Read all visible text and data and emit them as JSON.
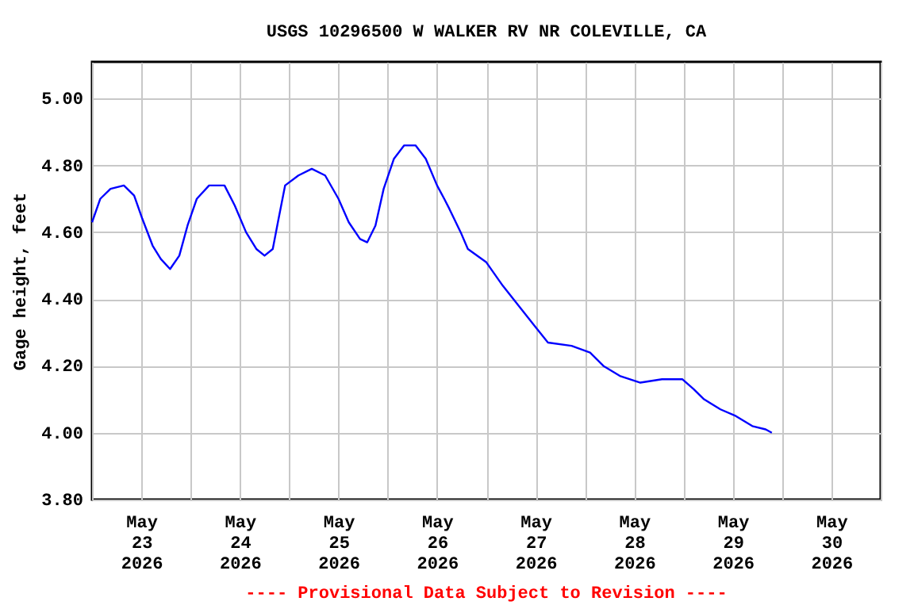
{
  "chart_data": {
    "type": "line",
    "title": "USGS 10296500 W WALKER RV NR COLEVILLE, CA",
    "ylabel": "Gage height, feet",
    "annotations": [
      "---- Provisional Data Subject to Revision ----"
    ],
    "x": [
      "2026-05-23T00:00",
      "2026-05-23T02:00",
      "2026-05-23T04:30",
      "2026-05-23T07:45",
      "2026-05-23T10:15",
      "2026-05-23T12:15",
      "2026-05-23T14:45",
      "2026-05-23T16:45",
      "2026-05-23T19:00",
      "2026-05-23T21:15",
      "2026-05-23T23:15",
      "2026-05-24T01:30",
      "2026-05-24T04:30",
      "2026-05-24T08:15",
      "2026-05-24T10:45",
      "2026-05-24T13:30",
      "2026-05-24T16:00",
      "2026-05-24T18:00",
      "2026-05-24T20:00",
      "2026-05-24T21:15",
      "2026-05-24T23:00",
      "2026-05-25T02:15",
      "2026-05-25T05:30",
      "2026-05-25T08:45",
      "2026-05-25T12:00",
      "2026-05-25T14:30",
      "2026-05-25T17:15",
      "2026-05-25T19:00",
      "2026-05-25T21:00",
      "2026-05-25T23:00",
      "2026-05-26T01:30",
      "2026-05-26T04:00",
      "2026-05-26T06:45",
      "2026-05-26T09:15",
      "2026-05-26T12:00",
      "2026-05-26T13:45",
      "2026-05-26T15:00",
      "2026-05-26T17:45",
      "2026-05-26T19:30",
      "2026-05-27T00:00",
      "2026-05-27T04:00",
      "2026-05-27T08:30",
      "2026-05-27T11:45",
      "2026-05-27T15:00",
      "2026-05-27T20:45",
      "2026-05-28T01:15",
      "2026-05-28T04:30",
      "2026-05-28T08:30",
      "2026-05-28T13:30",
      "2026-05-28T18:45",
      "2026-05-28T23:45",
      "2026-05-29T02:30",
      "2026-05-29T05:00",
      "2026-05-29T09:00",
      "2026-05-29T12:45",
      "2026-05-29T16:45",
      "2026-05-29T20:00",
      "2026-05-29T21:30"
    ],
    "series": [
      {
        "color": "#0000ff",
        "values": [
          4.63,
          4.7,
          4.73,
          4.74,
          4.71,
          4.64,
          4.56,
          4.52,
          4.49,
          4.53,
          4.62,
          4.7,
          4.74,
          4.74,
          4.68,
          4.6,
          4.55,
          4.53,
          4.55,
          4.63,
          4.74,
          4.77,
          4.79,
          4.77,
          4.7,
          4.63,
          4.58,
          4.57,
          4.62,
          4.73,
          4.82,
          4.86,
          4.86,
          4.82,
          4.74,
          4.7,
          4.67,
          4.6,
          4.55,
          4.51,
          4.44,
          4.37,
          4.32,
          4.27,
          4.26,
          4.24,
          4.2,
          4.17,
          4.15,
          4.16,
          4.16,
          4.13,
          4.1,
          4.07,
          4.05,
          4.02,
          4.01,
          4.0
        ]
      }
    ],
    "xlim": [
      "2026-05-23",
      "2026-05-31"
    ],
    "xticks": [
      {
        "value": "2026-05-23T00:00",
        "label": null
      },
      {
        "value": "2026-05-23T12:00",
        "label": "May\n23\n2026"
      },
      {
        "value": "2026-05-24T00:00",
        "label": null
      },
      {
        "value": "2026-05-24T12:00",
        "label": "May\n24\n2026"
      },
      {
        "value": "2026-05-25T00:00",
        "label": null
      },
      {
        "value": "2026-05-25T12:00",
        "label": "May\n25\n2026"
      },
      {
        "value": "2026-05-26T00:00",
        "label": null
      },
      {
        "value": "2026-05-26T12:00",
        "label": "May\n26\n2026"
      },
      {
        "value": "2026-05-27T00:00",
        "label": null
      },
      {
        "value": "2026-05-27T12:00",
        "label": "May\n27\n2026"
      },
      {
        "value": "2026-05-28T00:00",
        "label": null
      },
      {
        "value": "2026-05-28T12:00",
        "label": "May\n28\n2026"
      },
      {
        "value": "2026-05-29T00:00",
        "label": null
      },
      {
        "value": "2026-05-29T12:00",
        "label": "May\n29\n2026"
      },
      {
        "value": "2026-05-30T00:00",
        "label": null
      },
      {
        "value": "2026-05-30T12:00",
        "label": "May\n30\n2026"
      },
      {
        "value": "2026-05-31T00:00",
        "label": null
      }
    ],
    "ylim": [
      3.8,
      5.11
    ],
    "yticks": [
      {
        "value": 3.8,
        "label": "3.80"
      },
      {
        "value": 4.0,
        "label": "4.00"
      },
      {
        "value": 4.2,
        "label": "4.20"
      },
      {
        "value": 4.4,
        "label": "4.40"
      },
      {
        "value": 4.6,
        "label": "4.60"
      },
      {
        "value": 4.8,
        "label": "4.80"
      },
      {
        "value": 5.0,
        "label": "5.00"
      }
    ],
    "grid": true,
    "line_style": "solid",
    "marker": "none"
  }
}
